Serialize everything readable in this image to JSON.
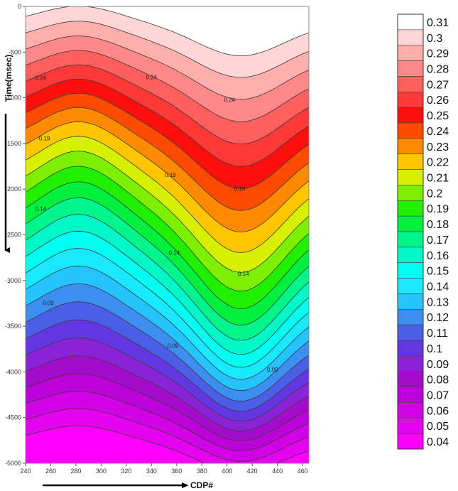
{
  "chart_data": {
    "type": "contour",
    "title": "",
    "xlabel": "CDP#",
    "ylabel": "Time(msec)",
    "xlim": [
      240,
      465
    ],
    "ylim": [
      -5000,
      0
    ],
    "x_ticks": [
      240,
      260,
      280,
      300,
      320,
      340,
      360,
      380,
      400,
      420,
      440,
      460
    ],
    "y_ticks": [
      0,
      -500,
      -1000,
      -1500,
      -2000,
      -2500,
      -3000,
      -3500,
      -4000,
      -4500,
      -5000
    ],
    "value_range": [
      0.04,
      0.31
    ],
    "contour_interval": 0.01,
    "contour_labels": [
      {
        "text": "0.24",
        "x": 252,
        "y": -790
      },
      {
        "text": "0.24",
        "x": 340,
        "y": -780
      },
      {
        "text": "0.24",
        "x": 402,
        "y": -1030
      },
      {
        "text": "0.19",
        "x": 255,
        "y": -1450
      },
      {
        "text": "0.19",
        "x": 355,
        "y": -1850
      },
      {
        "text": "0.19",
        "x": 410,
        "y": -2000
      },
      {
        "text": "0.14",
        "x": 252,
        "y": -2220
      },
      {
        "text": "0.14",
        "x": 358,
        "y": -2700
      },
      {
        "text": "0.14",
        "x": 413,
        "y": -2930
      },
      {
        "text": "0.09",
        "x": 258,
        "y": -3250
      },
      {
        "text": "0.09",
        "x": 357,
        "y": -3720
      },
      {
        "text": "0.09",
        "x": 436,
        "y": -3980
      }
    ],
    "colorbar": {
      "position": "right",
      "levels": [
        {
          "label": "0.31",
          "color": "#ffffff"
        },
        {
          "label": "0.3",
          "color": "#ffd6d6"
        },
        {
          "label": "0.29",
          "color": "#ffaeae"
        },
        {
          "label": "0.28",
          "color": "#ff8888"
        },
        {
          "label": "0.27",
          "color": "#ff5f5f"
        },
        {
          "label": "0.26",
          "color": "#ff3838"
        },
        {
          "label": "0.25",
          "color": "#ff0e0e"
        },
        {
          "label": "0.24",
          "color": "#ff4a00"
        },
        {
          "label": "0.23",
          "color": "#ff8a00"
        },
        {
          "label": "0.22",
          "color": "#ffc600"
        },
        {
          "label": "0.21",
          "color": "#d6f000"
        },
        {
          "label": "0.2",
          "color": "#7df000"
        },
        {
          "label": "0.19",
          "color": "#1ef000"
        },
        {
          "label": "0.18",
          "color": "#00f040"
        },
        {
          "label": "0.17",
          "color": "#00f58c"
        },
        {
          "label": "0.16",
          "color": "#00f8c8"
        },
        {
          "label": "0.15",
          "color": "#00ffee"
        },
        {
          "label": "0.14",
          "color": "#1ae8ff"
        },
        {
          "label": "0.13",
          "color": "#25c4ff"
        },
        {
          "label": "0.12",
          "color": "#3c8ff0"
        },
        {
          "label": "0.11",
          "color": "#4a5ee6"
        },
        {
          "label": "0.1",
          "color": "#6236e0"
        },
        {
          "label": "0.09",
          "color": "#8a22d8"
        },
        {
          "label": "0.08",
          "color": "#a40ccc"
        },
        {
          "label": "0.07",
          "color": "#bc00d8"
        },
        {
          "label": "0.06",
          "color": "#d200e4"
        },
        {
          "label": "0.05",
          "color": "#e600f0"
        },
        {
          "label": "0.04",
          "color": "#ff00ff"
        }
      ]
    }
  }
}
